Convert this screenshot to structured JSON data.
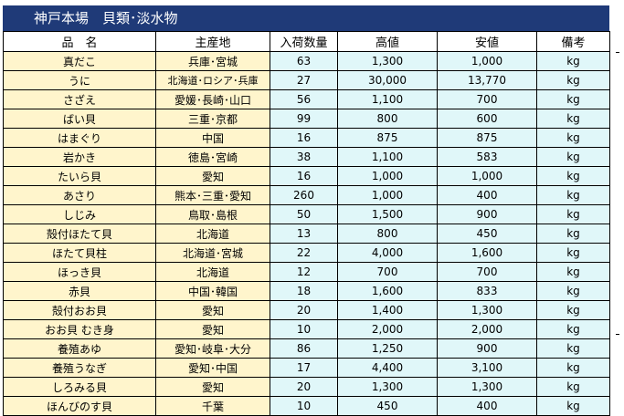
{
  "title": "神戸本場　貝類･淡水物",
  "columns": [
    "品　名",
    "主産地",
    "入荷数量",
    "高値",
    "安値",
    "備考"
  ],
  "rows": [
    {
      "name": "真だこ",
      "origin": "兵庫･宮城",
      "qty": "63",
      "high": "1,300",
      "low": "1,000",
      "unit": "kg"
    },
    {
      "name": "うに",
      "origin": "北海道･ロシア･兵庫",
      "qty": "27",
      "high": "30,000",
      "low": "13,770",
      "unit": "kg"
    },
    {
      "name": "さざえ",
      "origin": "愛媛･長崎･山口",
      "qty": "56",
      "high": "1,100",
      "low": "700",
      "unit": "kg"
    },
    {
      "name": "ばい貝",
      "origin": "三重･京都",
      "qty": "99",
      "high": "800",
      "low": "600",
      "unit": "kg"
    },
    {
      "name": "はまぐり",
      "origin": "中国",
      "qty": "16",
      "high": "875",
      "low": "875",
      "unit": "kg"
    },
    {
      "name": "岩かき",
      "origin": "徳島･宮崎",
      "qty": "38",
      "high": "1,100",
      "low": "583",
      "unit": "kg"
    },
    {
      "name": "たいら貝",
      "origin": "愛知",
      "qty": "16",
      "high": "1,000",
      "low": "1,000",
      "unit": "kg"
    },
    {
      "name": "あさり",
      "origin": "熊本･三重･愛知",
      "qty": "260",
      "high": "1,000",
      "low": "400",
      "unit": "kg"
    },
    {
      "name": "しじみ",
      "origin": "鳥取･島根",
      "qty": "50",
      "high": "1,500",
      "low": "900",
      "unit": "kg"
    },
    {
      "name": "殻付ほたて貝",
      "origin": "北海道",
      "qty": "13",
      "high": "800",
      "low": "450",
      "unit": "kg"
    },
    {
      "name": "ほたて貝柱",
      "origin": "北海道･宮城",
      "qty": "22",
      "high": "4,000",
      "low": "1,600",
      "unit": "kg"
    },
    {
      "name": "ほっき貝",
      "origin": "北海道",
      "qty": "12",
      "high": "700",
      "low": "700",
      "unit": "kg"
    },
    {
      "name": "赤貝",
      "origin": "中国･韓国",
      "qty": "18",
      "high": "1,600",
      "low": "833",
      "unit": "kg"
    },
    {
      "name": "殻付おお貝",
      "origin": "愛知",
      "qty": "20",
      "high": "1,400",
      "low": "1,300",
      "unit": "kg"
    },
    {
      "name": "おお貝 むき身",
      "origin": "愛知",
      "qty": "10",
      "high": "2,000",
      "low": "2,000",
      "unit": "kg"
    },
    {
      "name": "養殖あゆ",
      "origin": "愛知･岐阜･大分",
      "qty": "86",
      "high": "1,250",
      "low": "900",
      "unit": "kg"
    },
    {
      "name": "養殖うなぎ",
      "origin": "愛知･中国",
      "qty": "17",
      "high": "4,400",
      "low": "3,100",
      "unit": "kg"
    },
    {
      "name": "しろみる貝",
      "origin": "愛知",
      "qty": "20",
      "high": "1,300",
      "low": "1,300",
      "unit": "kg"
    },
    {
      "name": "ほんびのす貝",
      "origin": "千葉",
      "qty": "10",
      "high": "450",
      "low": "400",
      "unit": "kg"
    }
  ]
}
